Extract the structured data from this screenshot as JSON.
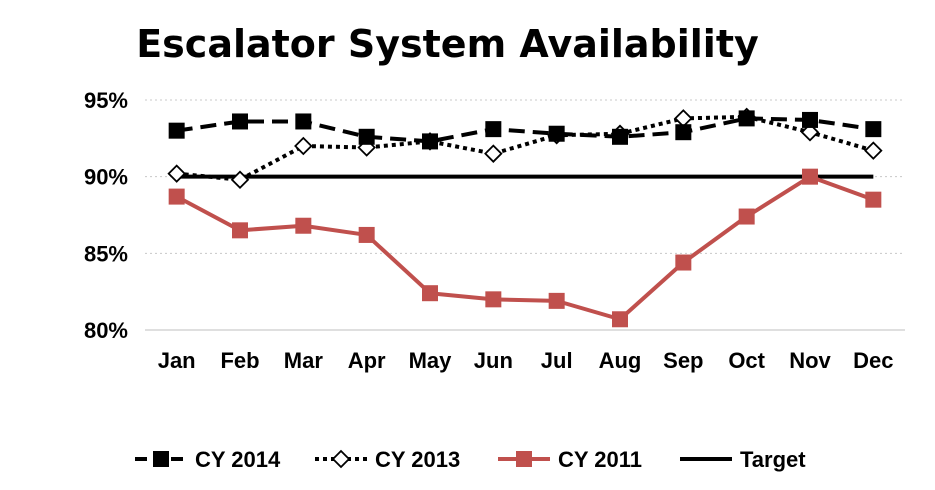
{
  "chart_data": {
    "type": "line",
    "title": "Escalator System Availability",
    "categories": [
      "Jan",
      "Feb",
      "Mar",
      "Apr",
      "May",
      "Jun",
      "Jul",
      "Aug",
      "Sep",
      "Oct",
      "Nov",
      "Dec"
    ],
    "ylim": [
      80,
      95
    ],
    "yticks": [
      "95%",
      "90%",
      "85%",
      "80%"
    ],
    "ytick_values": [
      95,
      90,
      85,
      80
    ],
    "grid": "horizontal dotted",
    "legend_position": "bottom",
    "series": [
      {
        "name": "CY 2014",
        "values": [
          93.0,
          93.6,
          93.6,
          92.6,
          92.3,
          93.1,
          92.8,
          92.6,
          92.9,
          93.8,
          93.7,
          93.1
        ],
        "color": "#000000",
        "style": "dashed",
        "marker": "filled-square"
      },
      {
        "name": "CY 2013",
        "values": [
          90.2,
          89.8,
          92.0,
          91.9,
          92.3,
          91.5,
          92.7,
          92.8,
          93.8,
          93.9,
          92.9,
          91.7
        ],
        "color": "#000000",
        "style": "dotted",
        "marker": "hollow-diamond"
      },
      {
        "name": "CY 2011",
        "values": [
          88.7,
          86.5,
          86.8,
          86.2,
          82.4,
          82.0,
          81.9,
          80.7,
          84.4,
          87.4,
          90.0,
          88.5
        ],
        "color": "#c0504d",
        "style": "solid",
        "marker": "filled-square"
      },
      {
        "name": "Target",
        "values": [
          90,
          90,
          90,
          90,
          90,
          90,
          90,
          90,
          90,
          90,
          90,
          90
        ],
        "color": "#000000",
        "style": "solid",
        "marker": "none"
      }
    ]
  }
}
